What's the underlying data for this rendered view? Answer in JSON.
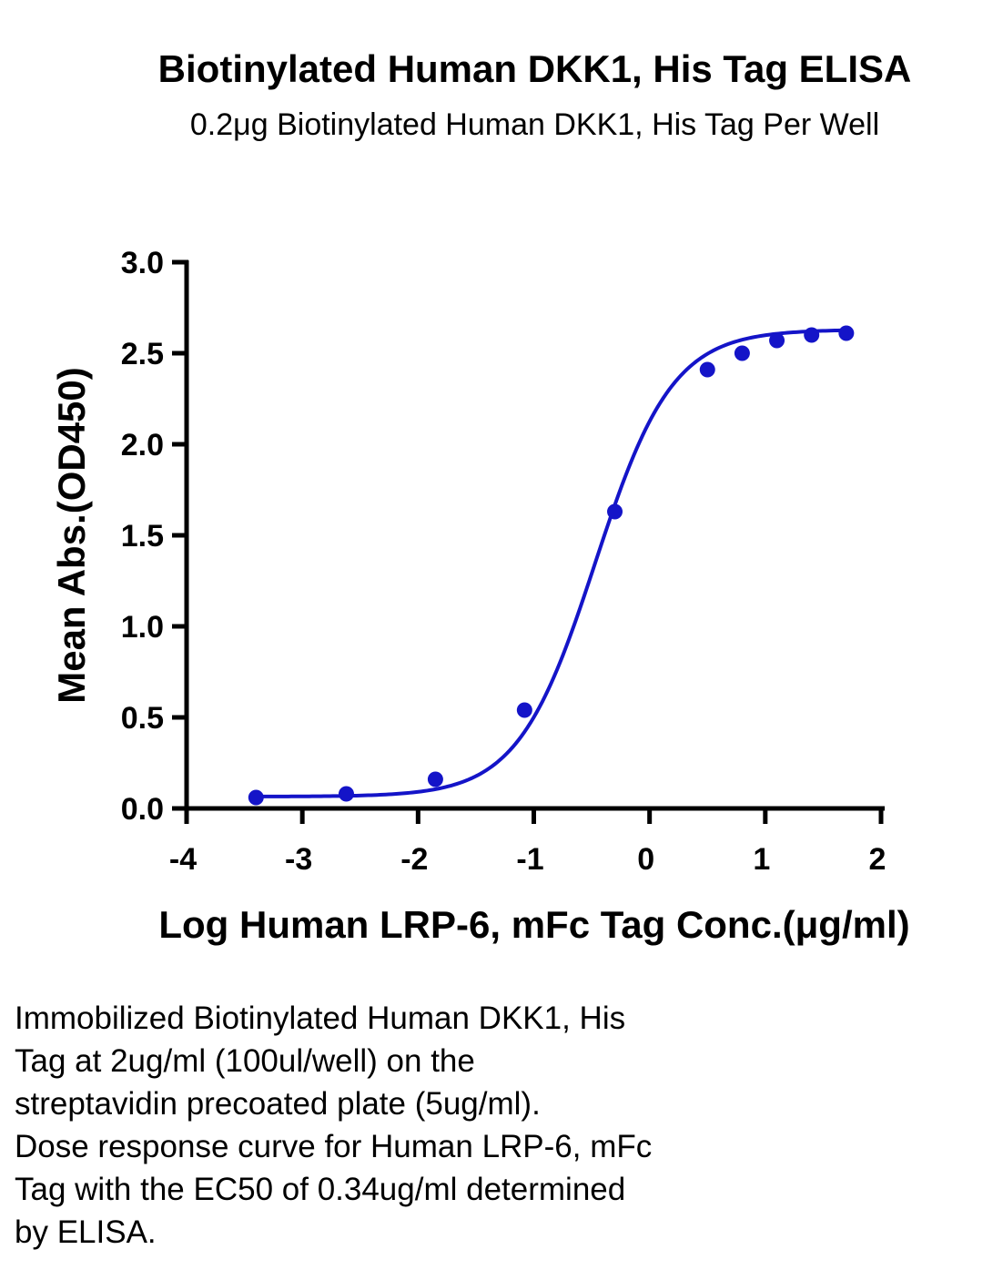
{
  "chart_data": {
    "type": "scatter",
    "title": "Biotinylated Human DKK1, His Tag ELISA",
    "subtitle": "0.2μg Biotinylated Human DKK1, His Tag Per Well",
    "xlabel": "Log Human LRP-6, mFc Tag Conc.(μg/ml)",
    "ylabel": "Mean Abs.(OD450)",
    "xlim": [
      -4,
      2
    ],
    "ylim": [
      0,
      3.0
    ],
    "x_ticks": [
      -4,
      -3,
      -2,
      -1,
      0,
      1,
      2
    ],
    "x_tick_labels": [
      "-4",
      "-3",
      "-2",
      "-1",
      "0",
      "1",
      "2"
    ],
    "y_ticks": [
      0,
      0.5,
      1.0,
      1.5,
      2.0,
      2.5,
      3.0
    ],
    "y_tick_labels": [
      "0.0",
      "0.5",
      "1.0",
      "1.5",
      "2.0",
      "2.5",
      "3.0"
    ],
    "series": [
      {
        "color": "#1414c8",
        "points": [
          {
            "x": -3.4,
            "y": 0.06
          },
          {
            "x": -2.62,
            "y": 0.08
          },
          {
            "x": -1.85,
            "y": 0.16
          },
          {
            "x": -1.08,
            "y": 0.54
          },
          {
            "x": -0.3,
            "y": 1.63
          },
          {
            "x": 0.5,
            "y": 2.41
          },
          {
            "x": 0.8,
            "y": 2.5
          },
          {
            "x": 1.1,
            "y": 2.57
          },
          {
            "x": 1.4,
            "y": 2.6
          },
          {
            "x": 1.7,
            "y": 2.61
          }
        ],
        "fit": "four-parameter logistic",
        "fit_params": {
          "bottom": 0.065,
          "top": 2.63,
          "log_ec50": -0.47,
          "hill": 1.3
        }
      }
    ],
    "grid": false,
    "legend": "none"
  },
  "caption": {
    "lines": [
      "Immobilized Biotinylated Human DKK1, His",
      "Tag at 2ug/ml (100ul/well) on the",
      "streptavidin precoated plate (5ug/ml).",
      "Dose response curve for Human LRP-6, mFc",
      "Tag with the EC50 of 0.34ug/ml determined",
      "by ELISA."
    ]
  }
}
